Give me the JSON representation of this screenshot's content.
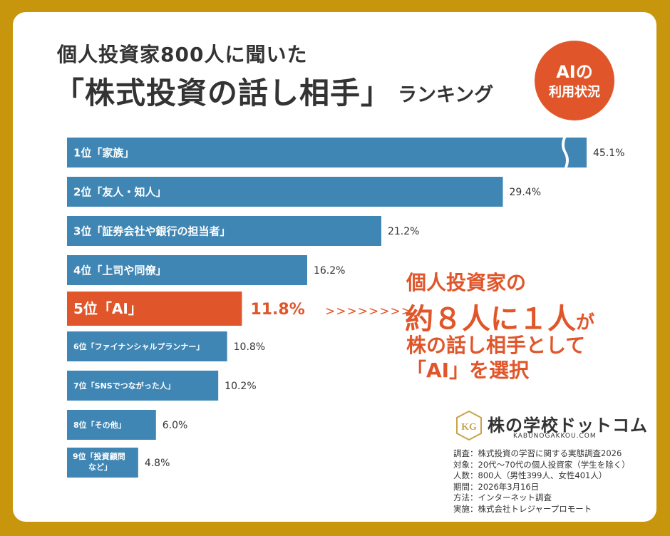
{
  "title": {
    "line1": "個人投資家800人に聞いた",
    "line2": "「株式投資の話し相手」",
    "suffix": "ランキング"
  },
  "badge": {
    "line1": "AIの",
    "line2": "利用状況"
  },
  "colors": {
    "bar": "#3f86b4",
    "highlight": "#e0562a",
    "background": "#c8960c",
    "text": "#333333"
  },
  "chart_data": {
    "type": "bar",
    "orientation": "horizontal",
    "categories": [
      "1位「家族」",
      "2位「友人・知人」",
      "3位「証券会社や銀行の担当者」",
      "4位「上司や同僚」",
      "5位「AI」",
      "6位「ファイナンシャルプランナー」",
      "7位「SNSでつながった人」",
      "8位「その他」",
      "9位「投資顧問など」"
    ],
    "values": [
      45.1,
      29.4,
      21.2,
      16.2,
      11.8,
      10.8,
      10.2,
      6.0,
      4.8
    ],
    "value_labels": [
      "45.1%",
      "29.4%",
      "21.2%",
      "16.2%",
      "11.8%",
      "10.8%",
      "10.2%",
      "6.0%",
      "4.8%"
    ],
    "highlight_index": 4,
    "axis_break_on": 0
  },
  "callout": {
    "line1": "個人投資家の",
    "line2_main": "約８人に１人",
    "line2_small": "が",
    "line3": "株の話し相手として",
    "line4": "「AI」を選択",
    "arrows": ">>>>>>>>"
  },
  "logo": {
    "name": "株の学校ドットコム",
    "url": "KABUNOGAKKOU.COM",
    "mark": "KG"
  },
  "survey": [
    "調査：株式投資の学習に関する実態調査2026",
    "対象：20代〜70代の個人投資家（学生を除く）",
    "人数：800人（男性399人、女性401人）",
    "期間：2026年3月16日",
    "方法：インターネット調査",
    "実施：株式会社トレジャープロモート"
  ]
}
